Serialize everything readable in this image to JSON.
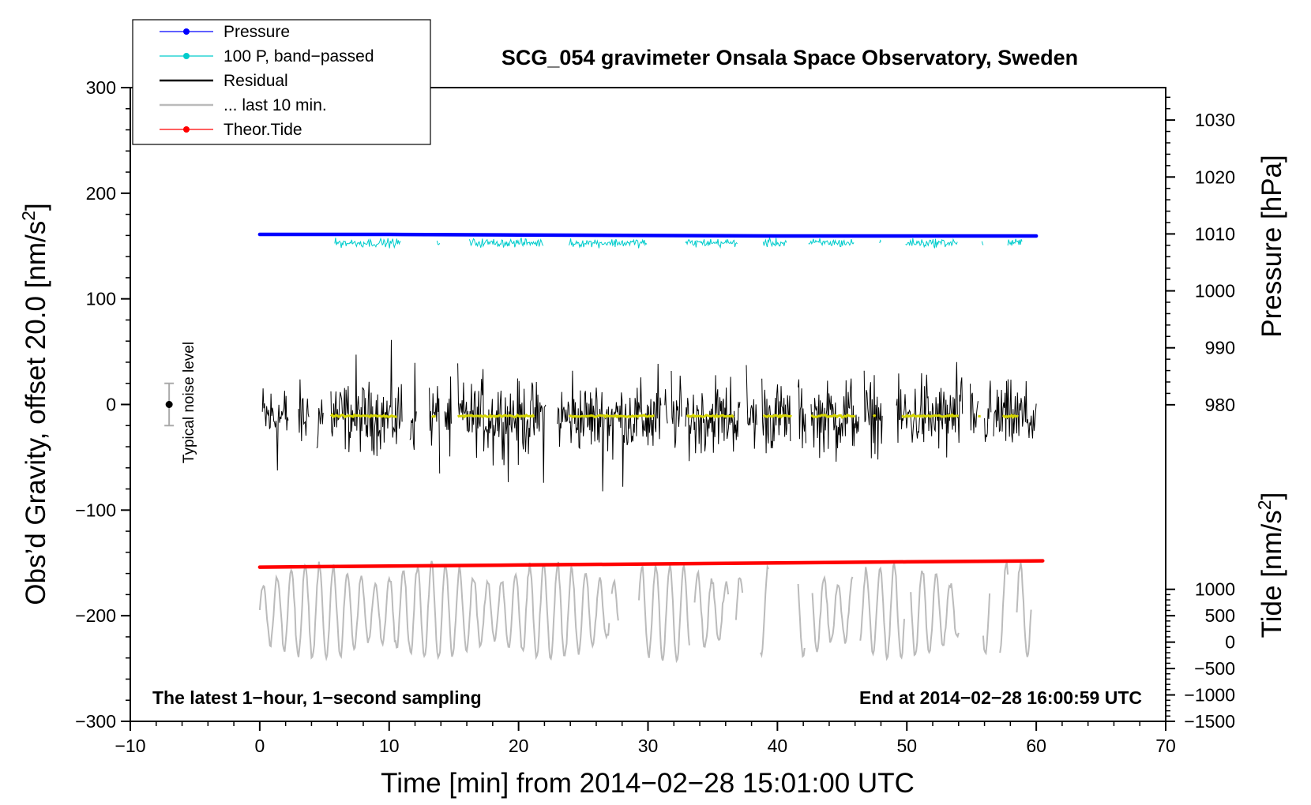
{
  "chart_data": {
    "type": "line",
    "title": "SCG_054 gravimeter Onsala Space Observatory, Sweden",
    "xlabel": "Time [min] from 2014−02−28 15:01:00 UTC",
    "ylabel_left": "Obs’d Gravity, offset 20.0 [nm/s",
    "ylabel_left_sup": "2",
    "ylabel_left_end": "]",
    "ylabel_right_pressure": "Pressure [hPa]",
    "ylabel_right_tide": "Tide [nm/s",
    "ylabel_right_tide_sup": "2",
    "ylabel_right_tide_end": "]",
    "xlim": [
      -10,
      70
    ],
    "ylim": [
      -300,
      300
    ],
    "x_ticks": [
      -10,
      0,
      10,
      20,
      30,
      40,
      50,
      60,
      70
    ],
    "x_tick_labels": [
      "−10",
      "0",
      "10",
      "20",
      "30",
      "40",
      "50",
      "60",
      "70"
    ],
    "y_ticks": [
      -300,
      -200,
      -100,
      0,
      100,
      200,
      300
    ],
    "y_tick_labels": [
      "−300",
      "−200",
      "−100",
      "0",
      "100",
      "200",
      "300"
    ],
    "pressure_ticks": [
      1030,
      1020,
      1010,
      1000,
      990,
      980
    ],
    "pressure_tick_labels": [
      "1030",
      "1020",
      "1010",
      "1000",
      "990",
      "980"
    ],
    "pressure_axis": {
      "value_at_grav_300": 1035.7,
      "hpa_per_grav_unit": 0.1855
    },
    "tide_ticks": [
      1000,
      500,
      0,
      -500,
      -1000,
      -1500
    ],
    "tide_tick_labels": [
      "1000",
      "500",
      "0",
      "−500",
      "−1000",
      "−1500"
    ],
    "tide_axis": {
      "value_at_grav_minus_300": -1500,
      "tide_per_grav_unit": 20
    },
    "legend": [
      {
        "label": "Pressure",
        "color": "#0000ff",
        "marker": true
      },
      {
        "label": "100 P, band−passed",
        "color": "#00cccc",
        "marker": true
      },
      {
        "label": "Residual",
        "color": "#000000",
        "marker": false
      },
      {
        "label": "... last 10 min.",
        "color": "#bbbbbb",
        "marker": false
      },
      {
        "label": "Theor.Tide",
        "color": "#ff0000",
        "marker": true
      }
    ],
    "legend_position": "top-left",
    "series": [
      {
        "name": "Pressure",
        "color": "#0000ff",
        "x": [
          0,
          10,
          20,
          30,
          40,
          50,
          60
        ],
        "y": [
          161,
          161,
          160.5,
          160,
          159.5,
          159.5,
          159.5
        ]
      },
      {
        "name": "100 P, band-passed",
        "color": "#00cccc",
        "segments": [
          [
            5.8,
            10.9
          ],
          [
            13.7,
            13.9
          ],
          [
            16.2,
            21.9
          ],
          [
            23.9,
            29.9
          ],
          [
            32.9,
            36.9
          ],
          [
            38.9,
            40.7
          ],
          [
            42.4,
            45.9
          ],
          [
            47.9,
            48.0
          ],
          [
            49.9,
            53.9
          ],
          [
            55.8,
            55.9
          ],
          [
            57.8,
            58.9
          ]
        ],
        "center": 153,
        "amplitude": 6
      },
      {
        "name": "Residual",
        "color": "#000000",
        "segments": [
          [
            0.2,
            2.2
          ],
          [
            3.0,
            3.8
          ],
          [
            4.4,
            4.9
          ],
          [
            5.5,
            11.0
          ],
          [
            11.6,
            12.1
          ],
          [
            13.1,
            13.9
          ],
          [
            14.3,
            14.8
          ],
          [
            15.3,
            22.1
          ],
          [
            23.0,
            31.0
          ],
          [
            31.3,
            31.5
          ],
          [
            31.8,
            32.6
          ],
          [
            32.9,
            37.1
          ],
          [
            37.6,
            38.4
          ],
          [
            38.8,
            41.0
          ],
          [
            41.6,
            42.2
          ],
          [
            42.6,
            46.3
          ],
          [
            46.7,
            48.1
          ],
          [
            49.2,
            54.3
          ],
          [
            54.9,
            55.5
          ],
          [
            56.0,
            56.5
          ],
          [
            56.7,
            60.0
          ]
        ],
        "center": -12,
        "amplitude": 48
      },
      {
        "name": "Residual smoothed",
        "color": "#d4d400",
        "segments": [
          [
            5.5,
            10.6
          ],
          [
            13.3,
            13.6
          ],
          [
            15.3,
            21.2
          ],
          [
            23.9,
            30.5
          ],
          [
            33.0,
            36.6
          ],
          [
            38.9,
            41.1
          ],
          [
            42.6,
            46.0
          ],
          [
            47.4,
            47.6
          ],
          [
            49.6,
            54.0
          ],
          [
            55.5,
            55.7
          ],
          [
            57.4,
            58.6
          ]
        ],
        "value": -11
      },
      {
        "name": "... last 10 min.",
        "color": "#bbbbbb",
        "segments": [
          [
            0.0,
            27.0
          ],
          [
            27.2,
            27.7
          ],
          [
            29.3,
            33.2
          ],
          [
            33.6,
            36.2
          ],
          [
            36.8,
            37.3
          ],
          [
            38.7,
            39.3
          ],
          [
            41.6,
            42.1
          ],
          [
            42.7,
            45.8
          ],
          [
            46.4,
            49.8
          ],
          [
            50.3,
            54.0
          ],
          [
            55.9,
            56.4
          ],
          [
            57.2,
            57.8
          ],
          [
            58.5,
            59.6
          ]
        ],
        "center": -196,
        "amplitude": 30
      },
      {
        "name": "Theor.Tide",
        "color": "#ff0000",
        "x": [
          0,
          10,
          20,
          30,
          40,
          50,
          60.5
        ],
        "y": [
          -154,
          -153,
          -152,
          -151,
          -150,
          -149,
          -148
        ]
      }
    ],
    "noise_bar": {
      "label": "Typical noise level",
      "x": -7,
      "y": 0,
      "low": -20,
      "high": 20
    },
    "annotation_left": "The latest 1−hour, 1−second sampling",
    "annotation_right": "End at 2014−02−28 16:00:59 UTC"
  }
}
